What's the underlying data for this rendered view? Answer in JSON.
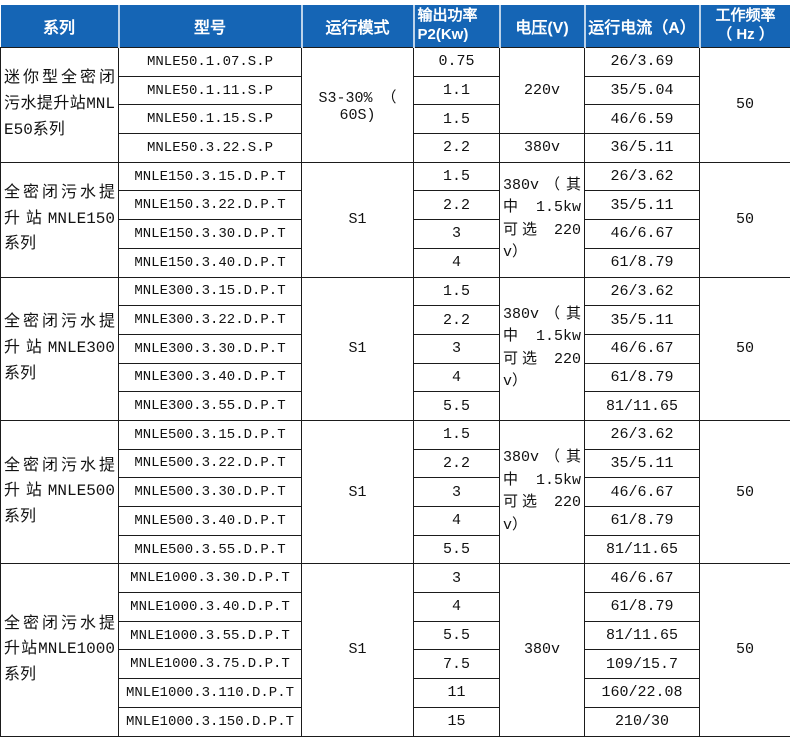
{
  "colors": {
    "header_bg": "#1565b5",
    "header_text": "#ffffff",
    "body_text": "#111111",
    "border": "#1b1b1b",
    "header_divider": "#bcd3ea"
  },
  "header": {
    "series": "系列",
    "model": "型号",
    "mode": "运行模式",
    "power_line1": "输出功率",
    "power_line2": "P2(Kw)",
    "voltage": "电压(V)",
    "current": "运行电流（A）",
    "freq_line1": "工作频率",
    "freq_line2": "（ Hz ）"
  },
  "sections": [
    {
      "series": "迷你型全密闭污水提升站MNLE50系列",
      "mode": "S3-30% （ 60S)",
      "frequency": "50",
      "voltage_groups": [
        {
          "label": "220v",
          "span": 3
        },
        {
          "label": "380v",
          "span": 1
        }
      ],
      "rows": [
        {
          "model": "MNLE50.1.07.S.P",
          "power": "0.75",
          "current": "26/3.69"
        },
        {
          "model": "MNLE50.1.11.S.P",
          "power": "1.1",
          "current": "35/5.04"
        },
        {
          "model": "MNLE50.1.15.S.P",
          "power": "1.5",
          "current": "46/6.59"
        },
        {
          "model": "MNLE50.3.22.S.P",
          "power": "2.2",
          "current": "36/5.11"
        }
      ]
    },
    {
      "series": "全密闭污水提升站MNLE150系列",
      "mode": "S1",
      "frequency": "50",
      "voltage_groups": [
        {
          "label": "380v（其中 1.5kw 可选 220v）",
          "span": 4
        }
      ],
      "rows": [
        {
          "model": "MNLE150.3.15.D.P.T",
          "power": "1.5",
          "current": "26/3.62"
        },
        {
          "model": "MNLE150.3.22.D.P.T",
          "power": "2.2",
          "current": "35/5.11"
        },
        {
          "model": "MNLE150.3.30.D.P.T",
          "power": "3",
          "current": "46/6.67"
        },
        {
          "model": "MNLE150.3.40.D.P.T",
          "power": "4",
          "current": "61/8.79"
        }
      ]
    },
    {
      "series": "全密闭污水提升站MNLE300系列",
      "mode": "S1",
      "frequency": "50",
      "voltage_groups": [
        {
          "label": "380v（其中 1.5kw 可选 220v）",
          "span": 5
        }
      ],
      "rows": [
        {
          "model": "MNLE300.3.15.D.P.T",
          "power": "1.5",
          "current": "26/3.62"
        },
        {
          "model": "MNLE300.3.22.D.P.T",
          "power": "2.2",
          "current": "35/5.11"
        },
        {
          "model": "MNLE300.3.30.D.P.T",
          "power": "3",
          "current": "46/6.67"
        },
        {
          "model": "MNLE300.3.40.D.P.T",
          "power": "4",
          "current": "61/8.79"
        },
        {
          "model": "MNLE300.3.55.D.P.T",
          "power": "5.5",
          "current": "81/11.65"
        }
      ]
    },
    {
      "series": "全密闭污水提升站MNLE500系列",
      "mode": "S1",
      "frequency": "50",
      "voltage_groups": [
        {
          "label": "380v（其中 1.5kw 可选 220v）",
          "span": 5
        }
      ],
      "rows": [
        {
          "model": "MNLE500.3.15.D.P.T",
          "power": "1.5",
          "current": "26/3.62"
        },
        {
          "model": "MNLE500.3.22.D.P.T",
          "power": "2.2",
          "current": "35/5.11"
        },
        {
          "model": "MNLE500.3.30.D.P.T",
          "power": "3",
          "current": "46/6.67"
        },
        {
          "model": "MNLE500.3.40.D.P.T",
          "power": "4",
          "current": "61/8.79"
        },
        {
          "model": "MNLE500.3.55.D.P.T",
          "power": "5.5",
          "current": "81/11.65"
        }
      ]
    },
    {
      "series": "全密闭污水提升站MNLE1000系列",
      "mode": "S1",
      "frequency": "50",
      "voltage_groups": [
        {
          "label": "380v",
          "span": 6
        }
      ],
      "rows": [
        {
          "model": "MNLE1000.3.30.D.P.T",
          "power": "3",
          "current": "46/6.67"
        },
        {
          "model": "MNLE1000.3.40.D.P.T",
          "power": "4",
          "current": "61/8.79"
        },
        {
          "model": "MNLE1000.3.55.D.P.T",
          "power": "5.5",
          "current": "81/11.65"
        },
        {
          "model": "MNLE1000.3.75.D.P.T",
          "power": "7.5",
          "current": "109/15.7"
        },
        {
          "model": "MNLE1000.3.110.D.P.T",
          "power": "11",
          "current": "160/22.08"
        },
        {
          "model": "MNLE1000.3.150.D.P.T",
          "power": "15",
          "current": "210/30"
        }
      ]
    }
  ]
}
